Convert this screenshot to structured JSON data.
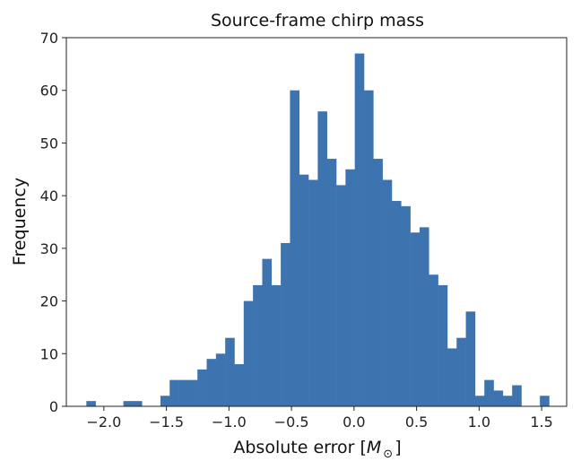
{
  "chart_data": {
    "type": "bar",
    "title": "Source-frame chirp mass",
    "xlabel": "Absolute error [",
    "xlabel_symbol": "M",
    "xlabel_subscript": "⊙",
    "xlabel_close": "]",
    "ylabel": "Frequency",
    "bar_color": "#3d74b0",
    "xlim": [
      -2.3,
      1.7
    ],
    "ylim": [
      0,
      70
    ],
    "xticks": [
      -2.0,
      -1.5,
      -1.0,
      -0.5,
      0.0,
      0.5,
      1.0,
      1.5
    ],
    "xtick_labels": [
      "−2.0",
      "−1.5",
      "−1.0",
      "−0.5",
      "0.0",
      "0.5",
      "1.0",
      "1.5"
    ],
    "yticks": [
      0,
      10,
      20,
      30,
      40,
      50,
      60,
      70
    ],
    "ytick_labels": [
      "0",
      "10",
      "20",
      "30",
      "40",
      "50",
      "60",
      "70"
    ],
    "bin_width": 0.0739,
    "bins": [
      {
        "left": -2.14,
        "value": 1
      },
      {
        "left": -2.066,
        "value": 0
      },
      {
        "left": -1.992,
        "value": 0
      },
      {
        "left": -1.918,
        "value": 0
      },
      {
        "left": -1.844,
        "value": 1
      },
      {
        "left": -1.77,
        "value": 1
      },
      {
        "left": -1.696,
        "value": 0
      },
      {
        "left": -1.622,
        "value": 0
      },
      {
        "left": -1.548,
        "value": 2
      },
      {
        "left": -1.474,
        "value": 5
      },
      {
        "left": -1.4,
        "value": 5
      },
      {
        "left": -1.326,
        "value": 5
      },
      {
        "left": -1.252,
        "value": 7
      },
      {
        "left": -1.178,
        "value": 9
      },
      {
        "left": -1.104,
        "value": 10
      },
      {
        "left": -1.03,
        "value": 13
      },
      {
        "left": -0.956,
        "value": 8
      },
      {
        "left": -0.882,
        "value": 20
      },
      {
        "left": -0.808,
        "value": 23
      },
      {
        "left": -0.734,
        "value": 28
      },
      {
        "left": -0.66,
        "value": 23
      },
      {
        "left": -0.586,
        "value": 31
      },
      {
        "left": -0.512,
        "value": 60
      },
      {
        "left": -0.438,
        "value": 44
      },
      {
        "left": -0.364,
        "value": 43
      },
      {
        "left": -0.29,
        "value": 56
      },
      {
        "left": -0.216,
        "value": 47
      },
      {
        "left": -0.142,
        "value": 42
      },
      {
        "left": -0.068,
        "value": 45
      },
      {
        "left": 0.006,
        "value": 67
      },
      {
        "left": 0.08,
        "value": 60
      },
      {
        "left": 0.154,
        "value": 47
      },
      {
        "left": 0.228,
        "value": 43
      },
      {
        "left": 0.302,
        "value": 39
      },
      {
        "left": 0.376,
        "value": 38
      },
      {
        "left": 0.45,
        "value": 33
      },
      {
        "left": 0.524,
        "value": 34
      },
      {
        "left": 0.598,
        "value": 25
      },
      {
        "left": 0.672,
        "value": 23
      },
      {
        "left": 0.746,
        "value": 11
      },
      {
        "left": 0.82,
        "value": 13
      },
      {
        "left": 0.894,
        "value": 18
      },
      {
        "left": 0.968,
        "value": 2
      },
      {
        "left": 1.042,
        "value": 5
      },
      {
        "left": 1.116,
        "value": 3
      },
      {
        "left": 1.19,
        "value": 2
      },
      {
        "left": 1.264,
        "value": 4
      },
      {
        "left": 1.338,
        "value": 0
      },
      {
        "left": 1.412,
        "value": 0
      },
      {
        "left": 1.486,
        "value": 2
      }
    ]
  }
}
